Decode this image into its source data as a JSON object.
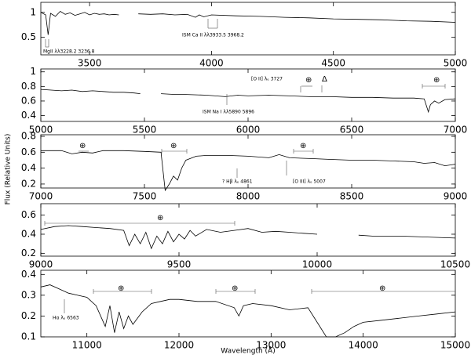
{
  "chart_data": [
    {
      "type": "line",
      "xlim": [
        3300,
        5000
      ],
      "ylim": [
        0.15,
        1.2
      ],
      "xticks": [
        3500,
        4000,
        4500,
        5000
      ],
      "yticks": [
        0.5,
        1
      ],
      "color": "#000000",
      "x": [
        3300,
        3320,
        3330,
        3340,
        3360,
        3380,
        3400,
        3420,
        3440,
        3460,
        3480,
        3500,
        3520,
        3540,
        3560,
        3580,
        3600,
        3620,
        3660,
        3700,
        3750,
        3800,
        3850,
        3900,
        3934,
        3950,
        3968,
        4000,
        4100,
        4200,
        4300,
        4400,
        4500,
        4600,
        4700,
        4800,
        4900,
        5000
      ],
      "values": [
        1.0,
        0.95,
        0.55,
        0.98,
        0.92,
        1.02,
        0.96,
        0.99,
        0.94,
        0.97,
        1.0,
        0.95,
        0.98,
        0.96,
        0.97,
        0.95,
        0.96,
        0.95,
        null,
        0.97,
        0.96,
        0.97,
        0.95,
        0.96,
        0.9,
        0.95,
        0.91,
        0.95,
        0.93,
        0.92,
        0.9,
        0.89,
        0.87,
        0.86,
        0.85,
        0.83,
        0.82,
        0.8
      ],
      "annotations": [
        "MgII λλ3228.2 3236.8",
        "ISM Ca II λλ3933.5 3968.2"
      ]
    },
    {
      "type": "line",
      "xlim": [
        5000,
        7000
      ],
      "ylim": [
        0.32,
        1.04
      ],
      "xticks": [
        5000,
        5500,
        6000,
        6500,
        7000
      ],
      "yticks": [
        0.4,
        0.6,
        0.8,
        1
      ],
      "color": "#000000",
      "x": [
        5000,
        5050,
        5100,
        5150,
        5200,
        5250,
        5300,
        5350,
        5400,
        5450,
        5480,
        5530,
        5580,
        5650,
        5700,
        5800,
        5890,
        5950,
        6000,
        6100,
        6200,
        6300,
        6400,
        6500,
        6600,
        6700,
        6800,
        6850,
        6870,
        6880,
        6900,
        6920,
        6950,
        7000
      ],
      "values": [
        0.76,
        0.75,
        0.74,
        0.75,
        0.73,
        0.74,
        0.73,
        0.72,
        0.72,
        0.71,
        0.7,
        null,
        0.7,
        0.69,
        0.69,
        0.68,
        0.66,
        0.68,
        0.67,
        0.68,
        0.67,
        0.66,
        0.66,
        0.65,
        0.65,
        0.64,
        0.64,
        0.63,
        0.45,
        0.55,
        0.6,
        0.57,
        0.62,
        0.63
      ],
      "annotations": [
        "[O II] λₑ 3727",
        "⊕",
        "Δ",
        "⊕",
        "ISM Na I λλ5890 5896"
      ]
    },
    {
      "type": "line",
      "xlim": [
        7000,
        9000
      ],
      "ylim": [
        0.15,
        0.82
      ],
      "xticks": [
        7000,
        7500,
        8000,
        8500,
        9000
      ],
      "yticks": [
        0.2,
        0.4,
        0.6,
        0.8
      ],
      "color": "#000000",
      "x": [
        7000,
        7100,
        7150,
        7200,
        7250,
        7300,
        7400,
        7500,
        7580,
        7600,
        7620,
        7640,
        7660,
        7680,
        7700,
        7750,
        7800,
        7900,
        8000,
        8100,
        8150,
        8200,
        8300,
        8400,
        8500,
        8600,
        8700,
        8800,
        8850,
        8900,
        8950,
        9000
      ],
      "values": [
        0.62,
        0.62,
        0.58,
        0.6,
        0.59,
        0.62,
        0.62,
        0.61,
        0.6,
        0.12,
        0.2,
        0.3,
        0.25,
        0.4,
        0.5,
        0.55,
        0.56,
        0.56,
        0.55,
        0.53,
        0.57,
        0.53,
        0.52,
        0.51,
        0.5,
        0.5,
        0.49,
        0.48,
        0.46,
        0.47,
        0.43,
        0.45
      ],
      "annotations": [
        "⊕",
        "⊕",
        "⊕",
        "? Hβ λₑ 4861",
        "[O III] λₑ 5007"
      ],
      "ylabel": "Flux (Relative Units)"
    },
    {
      "type": "line",
      "xlim": [
        9000,
        10500
      ],
      "ylim": [
        0.17,
        0.72
      ],
      "xticks": [
        9000,
        9500,
        10000,
        10500
      ],
      "yticks": [
        0.2,
        0.4,
        0.6
      ],
      "color": "#000000",
      "x": [
        9000,
        9050,
        9100,
        9150,
        9200,
        9250,
        9300,
        9320,
        9340,
        9360,
        9380,
        9400,
        9420,
        9440,
        9460,
        9480,
        9500,
        9520,
        9540,
        9560,
        9600,
        9650,
        9700,
        9750,
        9800,
        9850,
        9900,
        9950,
        10000,
        10100,
        10150,
        10200,
        10300,
        10400,
        10500
      ],
      "values": [
        0.45,
        0.48,
        0.49,
        0.48,
        0.47,
        0.46,
        0.44,
        0.28,
        0.4,
        0.3,
        0.42,
        0.25,
        0.38,
        0.3,
        0.43,
        0.32,
        0.4,
        0.35,
        0.44,
        0.38,
        0.45,
        0.42,
        0.44,
        0.46,
        0.42,
        0.43,
        0.42,
        0.41,
        0.4,
        null,
        0.39,
        0.38,
        0.38,
        0.37,
        0.36
      ],
      "annotations": [
        "⊕"
      ]
    },
    {
      "type": "line",
      "xlim": [
        10500,
        15000
      ],
      "ylim": [
        0.1,
        0.42
      ],
      "xticks": [
        11000,
        12000,
        13000,
        14000,
        15000
      ],
      "yticks": [
        0.1,
        0.2,
        0.3,
        0.4
      ],
      "color": "#000000",
      "x": [
        10500,
        10600,
        10700,
        10800,
        10900,
        11000,
        11100,
        11200,
        11250,
        11300,
        11350,
        11400,
        11450,
        11500,
        11600,
        11700,
        11800,
        11900,
        12000,
        12200,
        12400,
        12600,
        12650,
        12700,
        12800,
        13000,
        13200,
        13400,
        13500,
        13600,
        13700,
        13800,
        13900,
        14000,
        14200,
        14400,
        14600,
        14800,
        15000
      ],
      "values": [
        0.34,
        0.35,
        0.33,
        0.31,
        0.3,
        0.29,
        0.25,
        0.15,
        0.25,
        0.12,
        0.22,
        0.14,
        0.2,
        0.16,
        0.22,
        0.26,
        0.27,
        0.28,
        0.28,
        0.27,
        0.27,
        0.24,
        0.2,
        0.25,
        0.26,
        0.25,
        0.23,
        0.24,
        0.17,
        0.1,
        0.1,
        0.12,
        0.15,
        0.17,
        0.18,
        0.19,
        0.2,
        0.21,
        0.22
      ],
      "annotations": [
        "⊕",
        "⊕",
        "⊕",
        "Hα λₑ 6563"
      ],
      "xlabel": "Wavelength (Å)"
    }
  ]
}
